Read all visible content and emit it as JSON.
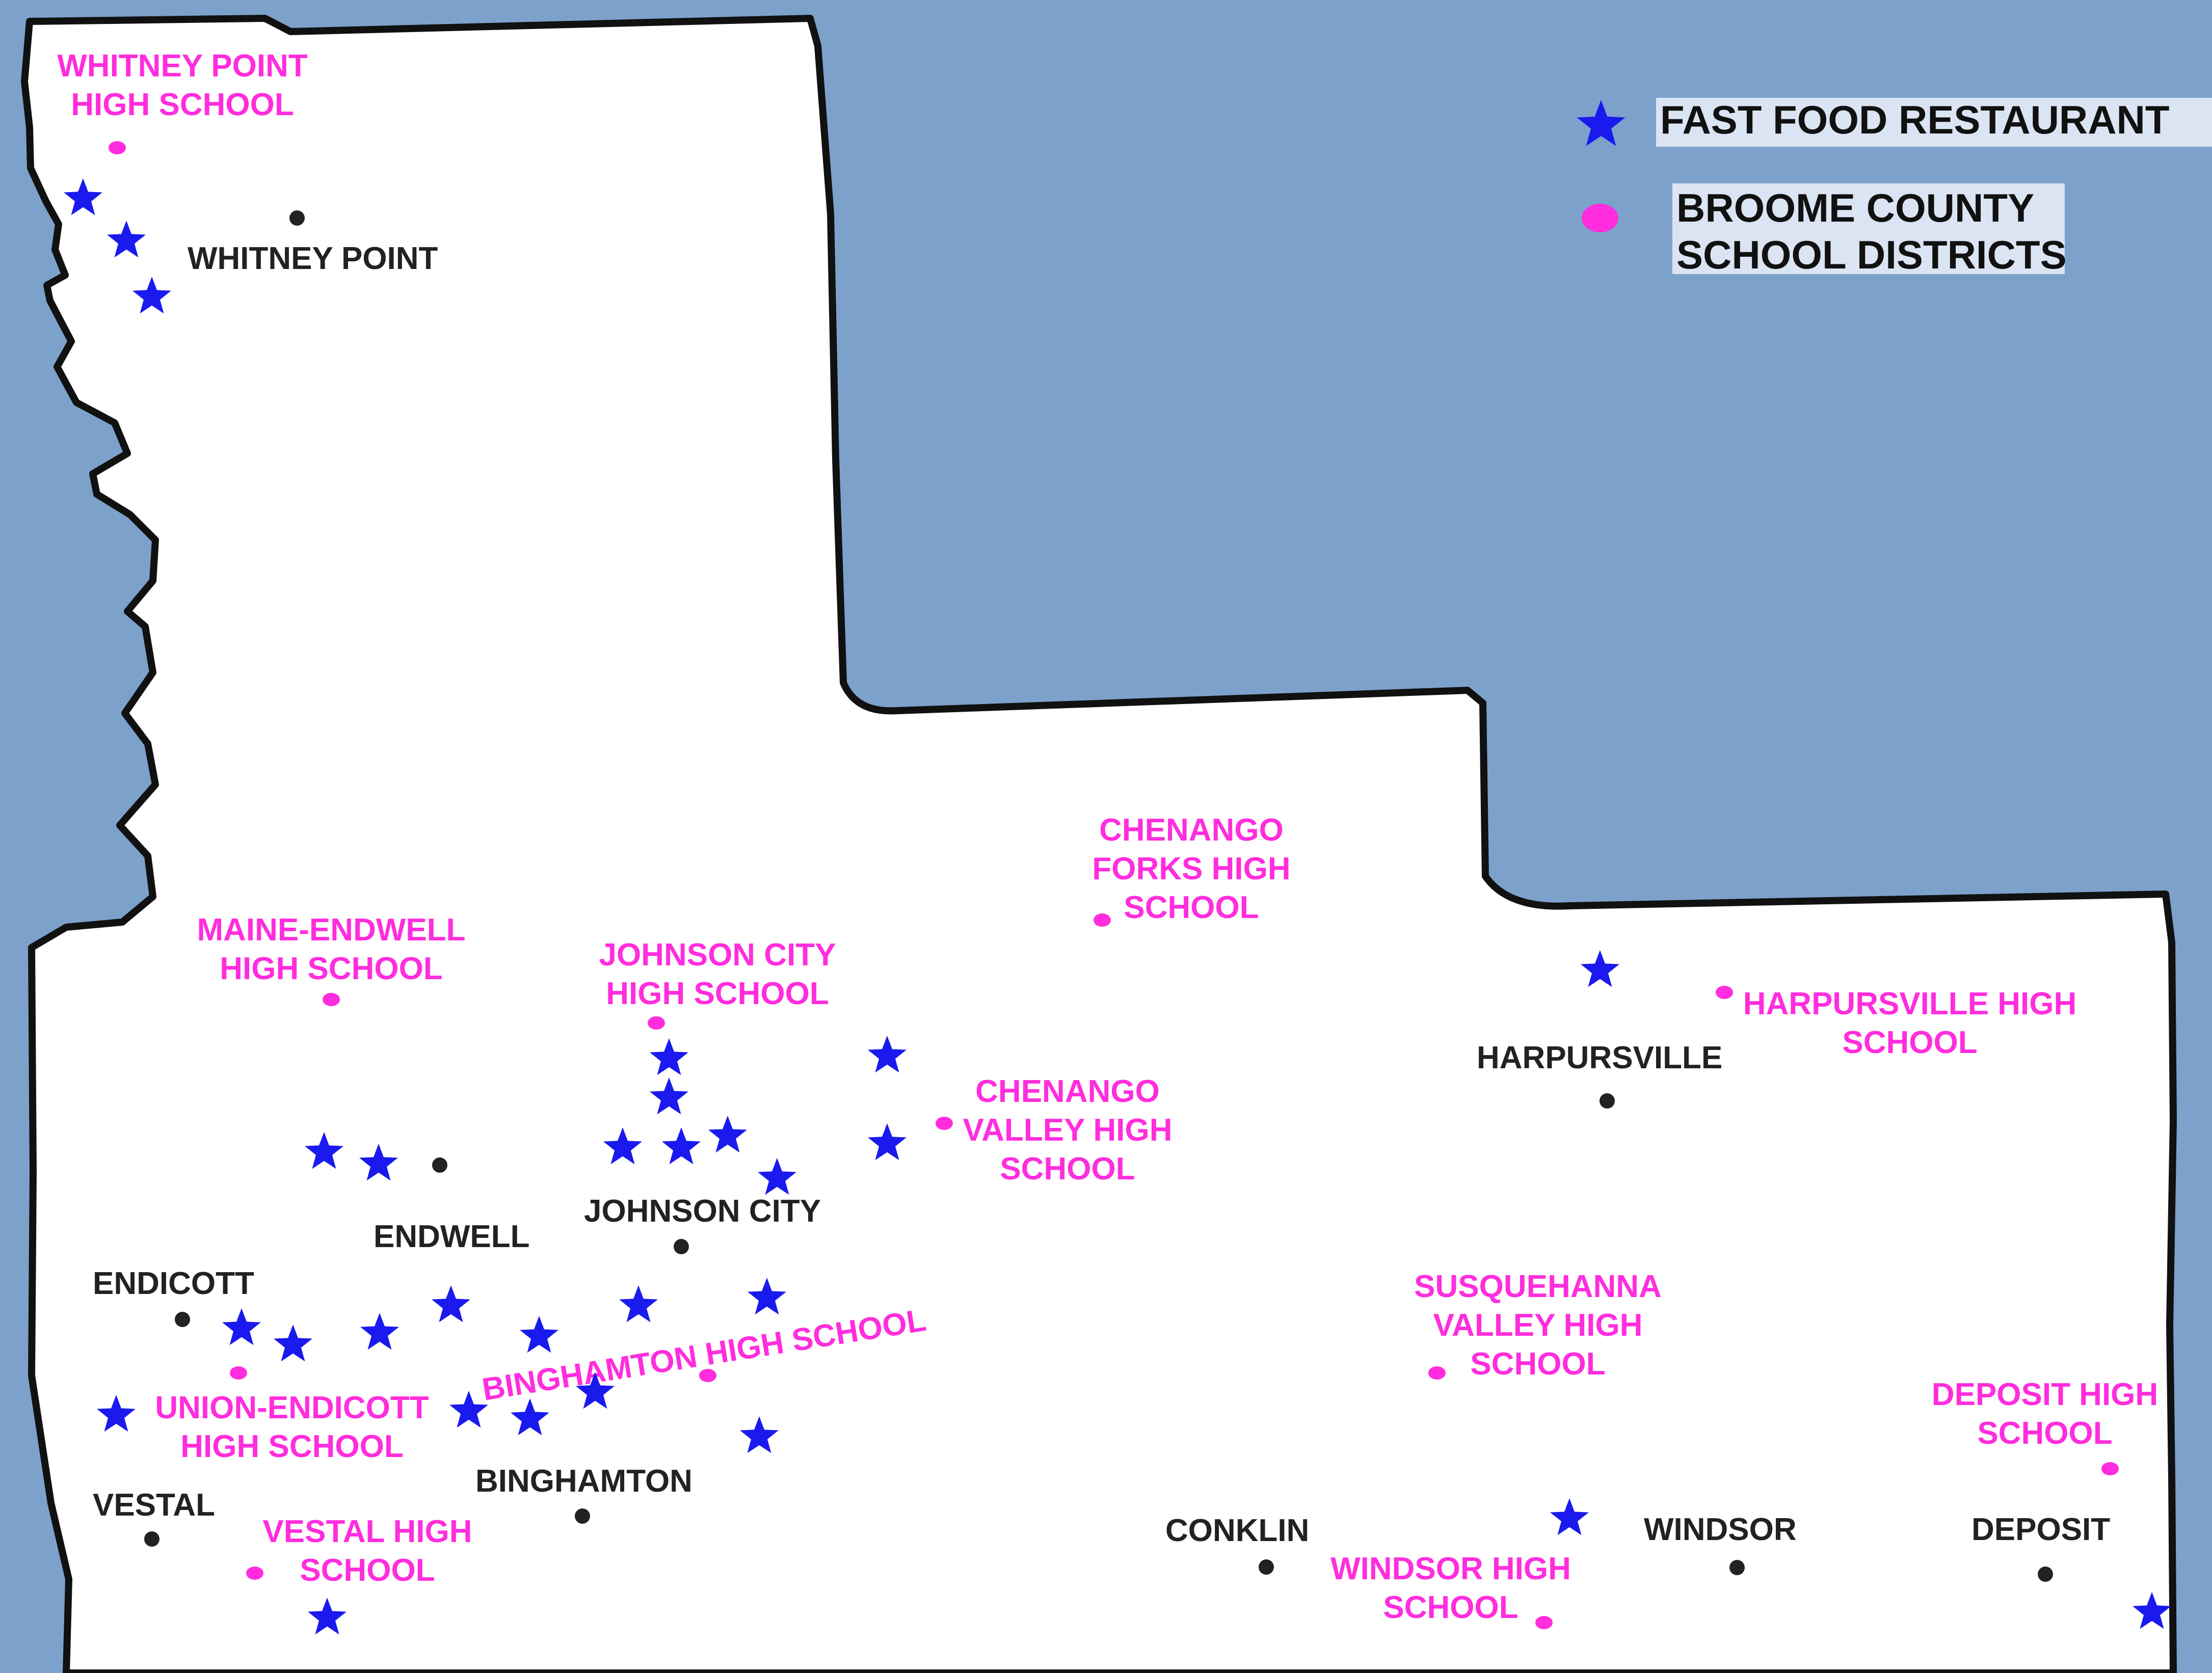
{
  "colors": {
    "water": "#7ca2cc",
    "land": "#ffffff",
    "border": "#111111",
    "restaurant": "#1a1aee",
    "school": "#ff2ddd",
    "town": "#222222",
    "legend_box": "#dbe4f2"
  },
  "icons": {
    "restaurant": "star-icon",
    "school": "pink-dot-icon",
    "town": "black-dot-icon"
  },
  "legend": {
    "restaurant_label": "FAST FOOD RESTAURANT",
    "school_label_line1": "BROOME COUNTY",
    "school_label_line2": "SCHOOL DISTRICTS"
  },
  "towns": [
    {
      "id": "whitney-point",
      "name": "WHITNEY POINT"
    },
    {
      "id": "endwell",
      "name": "ENDWELL"
    },
    {
      "id": "johnson-city",
      "name": "JOHNSON CITY"
    },
    {
      "id": "endicott",
      "name": "ENDICOTT"
    },
    {
      "id": "vestal",
      "name": "VESTAL"
    },
    {
      "id": "binghamton",
      "name": "BINGHAMTON"
    },
    {
      "id": "harpursville",
      "name": "HARPURSVILLE"
    },
    {
      "id": "conklin",
      "name": "CONKLIN"
    },
    {
      "id": "windsor",
      "name": "WINDSOR"
    },
    {
      "id": "deposit",
      "name": "DEPOSIT"
    }
  ],
  "schools": [
    {
      "id": "whitney-point-hs",
      "lines": [
        "WHITNEY POINT",
        "HIGH SCHOOL"
      ]
    },
    {
      "id": "maine-endwell-hs",
      "lines": [
        "MAINE-ENDWELL",
        "HIGH SCHOOL"
      ]
    },
    {
      "id": "johnson-city-hs",
      "lines": [
        "JOHNSON CITY",
        "HIGH SCHOOL"
      ]
    },
    {
      "id": "chenango-forks-hs",
      "lines": [
        "CHENANGO",
        "FORKS HIGH",
        "SCHOOL"
      ]
    },
    {
      "id": "chenango-valley-hs",
      "lines": [
        "CHENANGO",
        "VALLEY HIGH",
        "SCHOOL"
      ]
    },
    {
      "id": "harpursville-hs",
      "lines": [
        "HARPURSVILLE HIGH",
        "SCHOOL"
      ]
    },
    {
      "id": "binghamton-hs",
      "lines": [
        "BINGHAMTON HIGH SCHOOL"
      ]
    },
    {
      "id": "union-endicott-hs",
      "lines": [
        "UNION-ENDICOTT",
        "HIGH SCHOOL"
      ]
    },
    {
      "id": "vestal-hs",
      "lines": [
        "VESTAL HIGH",
        "SCHOOL"
      ]
    },
    {
      "id": "susquehanna-valley-hs",
      "lines": [
        "SUSQUEHANNA",
        "VALLEY HIGH",
        "SCHOOL"
      ]
    },
    {
      "id": "windsor-hs",
      "lines": [
        "WINDSOR HIGH",
        "SCHOOL"
      ]
    },
    {
      "id": "deposit-hs",
      "lines": [
        "DEPOSIT HIGH",
        "SCHOOL"
      ]
    }
  ]
}
